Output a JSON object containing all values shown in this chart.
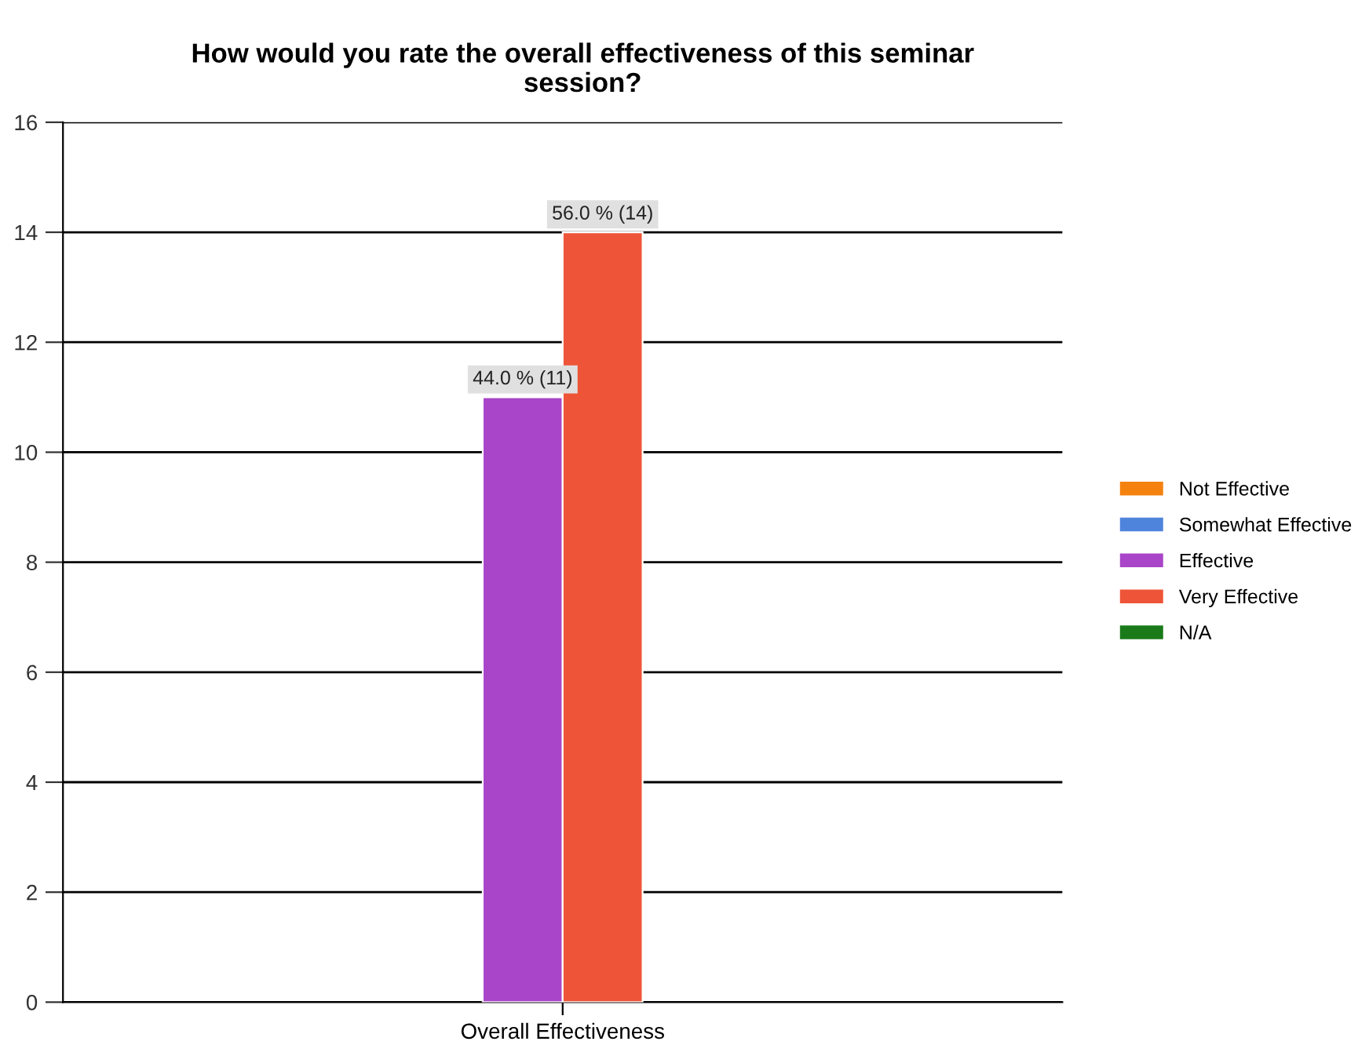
{
  "chart_data": {
    "type": "bar",
    "title": "How would you rate the overall effectiveness of this seminar\nsession?",
    "categories": [
      "Overall Effectiveness"
    ],
    "series": [
      {
        "name": "Not Effective",
        "color": "#f5820f",
        "values": [
          null
        ]
      },
      {
        "name": "Somewhat Effective",
        "color": "#4f84dc",
        "values": [
          null
        ]
      },
      {
        "name": "Effective",
        "color": "#a845c8",
        "values": [
          11
        ],
        "value_labels": [
          "44.0 % (11)"
        ]
      },
      {
        "name": "Very Effective",
        "color": "#ee5538",
        "values": [
          14
        ],
        "value_labels": [
          "56.0 % (14)"
        ]
      },
      {
        "name": "N/A",
        "color": "#1a7a1a",
        "values": [
          null
        ]
      }
    ],
    "ylim": [
      0,
      16
    ],
    "yticks": [
      0,
      2,
      4,
      6,
      8,
      10,
      12,
      14,
      16
    ],
    "grid": "y",
    "legend": "right"
  }
}
